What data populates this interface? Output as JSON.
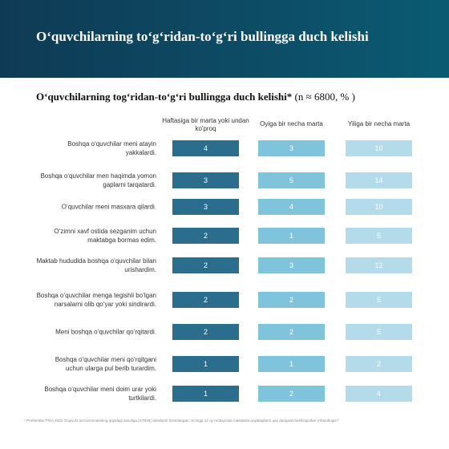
{
  "header": {
    "title": "O‘quvchilarning to‘g‘ridan-to‘g‘ri bullingga duch kelishi"
  },
  "table": {
    "title": "O‘quvchilarning tog‘ridan-to‘g‘ri bullingga duch kelishi*",
    "subtitle": "(n ≈ 6800, % )",
    "columns": [
      "Haftasiga bir marta yoki undan ko'proq",
      "Oyiga bir necha marta",
      "Yiliga bir necha marta"
    ],
    "rows": [
      {
        "label": "Boshqa o‘quvchilar meni atayin yakkalardi.",
        "values": [
          4,
          3,
          10
        ]
      },
      {
        "label": "Boshqa o‘quvchilar men haqimda yomon gaplarni tarqatardi.",
        "values": [
          3,
          5,
          14
        ]
      },
      {
        "label": "O‘quvchilar meni masxara qilardi.",
        "values": [
          3,
          4,
          10
        ]
      },
      {
        "label": "O‘zimni xavf ostida sezganim uchun maktabga bormas edim.",
        "values": [
          2,
          1,
          5
        ]
      },
      {
        "label": "Maktab hududida boshqa o‘quvchilar bilan urishardim.",
        "values": [
          2,
          3,
          12
        ]
      },
      {
        "label": "Boshqa o‘quvchilar menga tegishli bo‘lgan narsalarni olib qo‘yar yoki sindirardi.",
        "values": [
          2,
          2,
          5
        ]
      },
      {
        "label": "Meni boshqa o‘quvchilar qo‘rqitardi.",
        "values": [
          2,
          2,
          5
        ]
      },
      {
        "label": "Boshqa o‘quvchilar meni qo‘rqitgani uchun ularga pul berib turardim.",
        "values": [
          1,
          1,
          2
        ]
      },
      {
        "label": "Boshqa o‘quvchilar meni doim urar yoki turtkilardi.",
        "values": [
          1,
          2,
          4
        ]
      }
    ]
  },
  "footnote": "* Protsentlar PISA 2022 O‘quvchi so‘rovnomasining quyidagi savoliga (ST038) asoslanib hisoblangan: So‘nggi 12 oy mobaynida maktabda quyidagilarni qay darajada boshingizdan o‘tkazdingiz?"
}
